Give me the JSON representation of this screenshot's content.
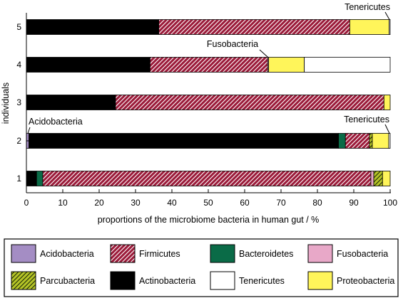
{
  "colors": {
    "Acidobacteria": "#a48dc4",
    "Firmicutes": "#9b1b3a",
    "Bacteroidetes": "#0a6b47",
    "Fusobacteria": "#e8a8c8",
    "Parcubacteria": "#b5c427",
    "Actinobacteria": "#000000",
    "Tenericutes": "#ffffff",
    "Proteobacteria": "#fff55a"
  },
  "chart_data": {
    "type": "bar",
    "orientation": "horizontal",
    "stacked": true,
    "xlabel": "proportions of the microbiome bacteria in human gut / %",
    "ylabel": "individuals",
    "xlim": [
      0,
      100
    ],
    "xticks": [
      0,
      10,
      20,
      30,
      40,
      50,
      60,
      70,
      80,
      90,
      100
    ],
    "categories": [
      "1",
      "2",
      "3",
      "4",
      "5"
    ],
    "grid": false,
    "legend_position": "bottom",
    "legend": [
      {
        "name": "Acidobacteria",
        "pattern": "solid"
      },
      {
        "name": "Firmicutes",
        "pattern": "hatch"
      },
      {
        "name": "Bacteroidetes",
        "pattern": "solid"
      },
      {
        "name": "Fusobacteria",
        "pattern": "solid"
      },
      {
        "name": "Parcubacteria",
        "pattern": "hatch"
      },
      {
        "name": "Actinobacteria",
        "pattern": "solid"
      },
      {
        "name": "Tenericutes",
        "pattern": "solid"
      },
      {
        "name": "Proteobacteria",
        "pattern": "solid"
      }
    ],
    "bars": [
      {
        "individual": "1",
        "segments": [
          {
            "name": "Actinobacteria",
            "value": 2.8
          },
          {
            "name": "Bacteroidetes",
            "value": 1.7
          },
          {
            "name": "Firmicutes",
            "value": 90.2
          },
          {
            "name": "Fusobacteria",
            "value": 0.8
          },
          {
            "name": "Parcubacteria",
            "value": 2.4
          },
          {
            "name": "Proteobacteria",
            "value": 2.1
          }
        ]
      },
      {
        "individual": "2",
        "segments": [
          {
            "name": "Acidobacteria",
            "value": 0.7
          },
          {
            "name": "Actinobacteria",
            "value": 85.1
          },
          {
            "name": "Bacteroidetes",
            "value": 1.9
          },
          {
            "name": "Firmicutes",
            "value": 6.6
          },
          {
            "name": "Parcubacteria",
            "value": 0.8
          },
          {
            "name": "Proteobacteria",
            "value": 4.5
          },
          {
            "name": "Tenericutes",
            "value": 0.4
          }
        ]
      },
      {
        "individual": "3",
        "segments": [
          {
            "name": "Actinobacteria",
            "value": 24.5
          },
          {
            "name": "Firmicutes",
            "value": 73.8
          },
          {
            "name": "Proteobacteria",
            "value": 1.7
          }
        ]
      },
      {
        "individual": "4",
        "segments": [
          {
            "name": "Actinobacteria",
            "value": 34.0
          },
          {
            "name": "Firmicutes",
            "value": 32.3
          },
          {
            "name": "Fusobacteria",
            "value": 0.3
          },
          {
            "name": "Proteobacteria",
            "value": 9.8
          },
          {
            "name": "Tenericutes",
            "value": 23.6
          }
        ]
      },
      {
        "individual": "5",
        "segments": [
          {
            "name": "Actinobacteria",
            "value": 36.4
          },
          {
            "name": "Firmicutes",
            "value": 52.5
          },
          {
            "name": "Proteobacteria",
            "value": 10.8
          },
          {
            "name": "Tenericutes",
            "value": 0.3
          }
        ]
      }
    ],
    "annotations": [
      {
        "text": "Tenericutes",
        "individual": "5",
        "x": 99.8
      },
      {
        "text": "Fusobacteria",
        "individual": "4",
        "x": 66.4
      },
      {
        "text": "Acidobacteria",
        "individual": "2",
        "x": 0.4
      },
      {
        "text": "Tenericutes",
        "individual": "2",
        "x": 99.8
      }
    ]
  }
}
